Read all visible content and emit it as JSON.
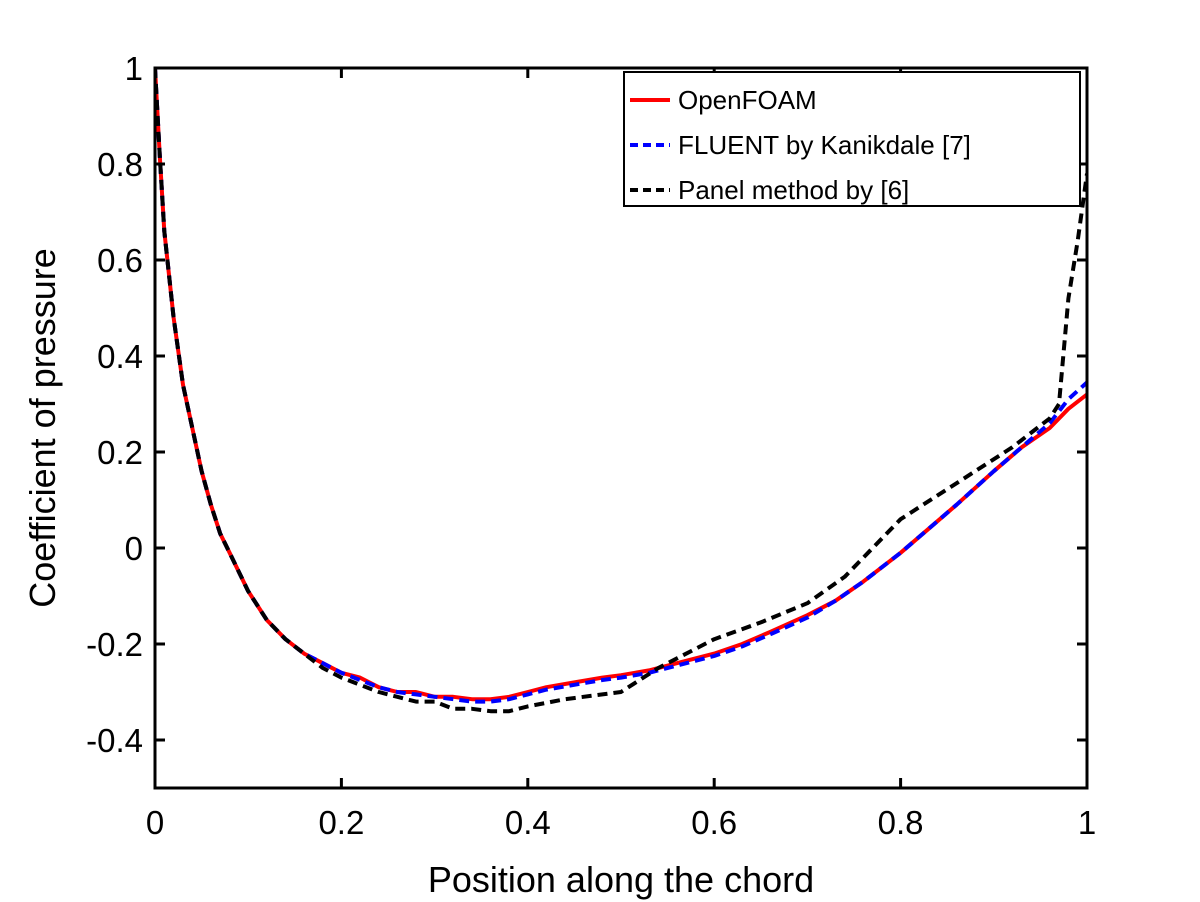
{
  "chart_data": {
    "type": "line",
    "title": "",
    "xlabel": "Position along the chord",
    "ylabel": "Coefficient of pressure",
    "xlim": [
      0,
      1
    ],
    "ylim": [
      -0.5,
      1
    ],
    "xticks": [
      0,
      0.2,
      0.4,
      0.6,
      0.8,
      1
    ],
    "xtick_labels": [
      "0",
      "0.2",
      "0.4",
      "0.6",
      "0.8",
      "1"
    ],
    "yticks": [
      -0.4,
      -0.2,
      0,
      0.2,
      0.4,
      0.6,
      0.8,
      1
    ],
    "ytick_labels": [
      "-0.4",
      "-0.2",
      "0",
      "0.2",
      "0.4",
      "0.6",
      "0.8",
      "1"
    ],
    "grid": false,
    "legend_position": "top-right",
    "series": [
      {
        "name": "OpenFOAM",
        "color": "#ff0000",
        "dash": "solid",
        "x": [
          0,
          0.005,
          0.01,
          0.02,
          0.03,
          0.04,
          0.05,
          0.06,
          0.07,
          0.08,
          0.09,
          0.1,
          0.12,
          0.14,
          0.16,
          0.18,
          0.2,
          0.22,
          0.24,
          0.26,
          0.28,
          0.3,
          0.32,
          0.34,
          0.36,
          0.38,
          0.4,
          0.42,
          0.45,
          0.48,
          0.5,
          0.53,
          0.56,
          0.6,
          0.63,
          0.66,
          0.7,
          0.73,
          0.76,
          0.8,
          0.83,
          0.86,
          0.9,
          0.93,
          0.96,
          0.98,
          1.0
        ],
        "y": [
          1.0,
          0.82,
          0.66,
          0.48,
          0.34,
          0.25,
          0.16,
          0.09,
          0.03,
          -0.01,
          -0.05,
          -0.09,
          -0.15,
          -0.19,
          -0.22,
          -0.24,
          -0.26,
          -0.27,
          -0.29,
          -0.3,
          -0.3,
          -0.31,
          -0.31,
          -0.315,
          -0.315,
          -0.31,
          -0.3,
          -0.29,
          -0.28,
          -0.27,
          -0.265,
          -0.255,
          -0.24,
          -0.22,
          -0.2,
          -0.175,
          -0.14,
          -0.11,
          -0.07,
          -0.01,
          0.04,
          0.09,
          0.16,
          0.21,
          0.25,
          0.29,
          0.32
        ]
      },
      {
        "name": "FLUENT by Kanikdale [7]",
        "color": "#0000ff",
        "dash": "10,6",
        "x": [
          0,
          0.005,
          0.01,
          0.02,
          0.03,
          0.04,
          0.05,
          0.06,
          0.07,
          0.08,
          0.09,
          0.1,
          0.12,
          0.14,
          0.16,
          0.18,
          0.2,
          0.22,
          0.24,
          0.26,
          0.28,
          0.3,
          0.32,
          0.34,
          0.36,
          0.38,
          0.4,
          0.42,
          0.45,
          0.48,
          0.5,
          0.53,
          0.56,
          0.6,
          0.63,
          0.66,
          0.7,
          0.73,
          0.76,
          0.8,
          0.83,
          0.86,
          0.9,
          0.93,
          0.96,
          0.98,
          1.0
        ],
        "y": [
          1.0,
          0.82,
          0.66,
          0.48,
          0.34,
          0.25,
          0.16,
          0.09,
          0.03,
          -0.01,
          -0.05,
          -0.09,
          -0.15,
          -0.19,
          -0.22,
          -0.24,
          -0.26,
          -0.275,
          -0.29,
          -0.3,
          -0.305,
          -0.31,
          -0.315,
          -0.32,
          -0.32,
          -0.315,
          -0.305,
          -0.295,
          -0.285,
          -0.275,
          -0.27,
          -0.26,
          -0.245,
          -0.225,
          -0.205,
          -0.18,
          -0.145,
          -0.11,
          -0.07,
          -0.01,
          0.04,
          0.09,
          0.16,
          0.21,
          0.26,
          0.31,
          0.345
        ]
      },
      {
        "name": "Panel method by [6]",
        "color": "#000000",
        "dash": "10,6",
        "x": [
          0,
          0.005,
          0.01,
          0.02,
          0.03,
          0.04,
          0.05,
          0.06,
          0.07,
          0.08,
          0.09,
          0.1,
          0.12,
          0.14,
          0.16,
          0.18,
          0.2,
          0.22,
          0.24,
          0.26,
          0.28,
          0.3,
          0.32,
          0.34,
          0.36,
          0.38,
          0.4,
          0.44,
          0.48,
          0.5,
          0.54,
          0.58,
          0.6,
          0.65,
          0.7,
          0.74,
          0.78,
          0.8,
          0.84,
          0.88,
          0.92,
          0.96,
          0.97,
          0.98,
          0.99,
          1.0
        ],
        "y": [
          1.0,
          0.82,
          0.66,
          0.48,
          0.34,
          0.25,
          0.16,
          0.09,
          0.03,
          -0.01,
          -0.05,
          -0.09,
          -0.15,
          -0.19,
          -0.22,
          -0.25,
          -0.27,
          -0.285,
          -0.3,
          -0.31,
          -0.32,
          -0.32,
          -0.335,
          -0.335,
          -0.34,
          -0.34,
          -0.33,
          -0.315,
          -0.305,
          -0.3,
          -0.25,
          -0.21,
          -0.19,
          -0.155,
          -0.115,
          -0.06,
          0.02,
          0.06,
          0.11,
          0.16,
          0.21,
          0.27,
          0.3,
          0.52,
          0.64,
          0.78
        ]
      }
    ]
  }
}
